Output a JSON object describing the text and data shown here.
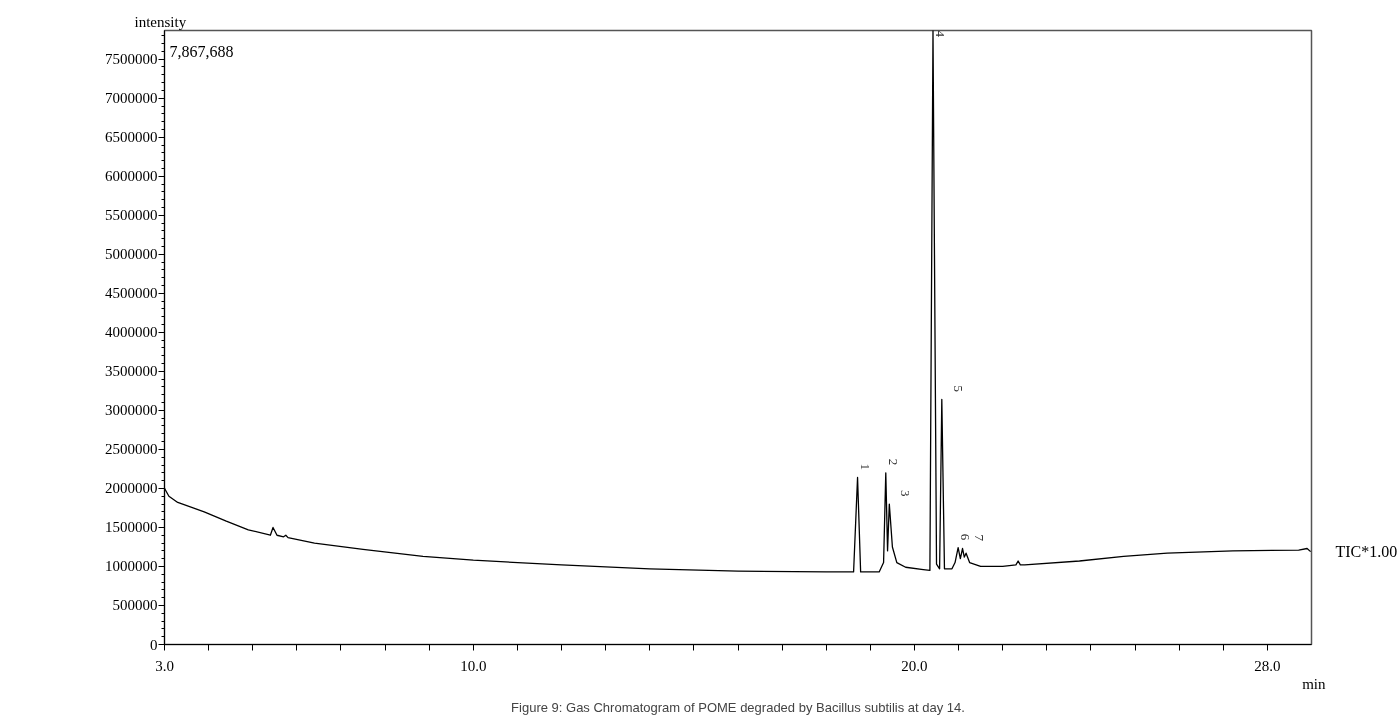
{
  "chart_data": {
    "type": "line",
    "xlabel": "min",
    "ylabel": "intensity",
    "x": [
      3.0,
      3.1,
      3.3,
      3.9,
      4.4,
      4.9,
      5.4,
      5.46,
      5.55,
      5.7,
      5.75,
      5.8,
      6.4,
      7.5,
      8.86,
      10,
      12,
      14,
      16,
      18,
      18.62,
      18.71,
      18.78,
      19.2,
      19.3,
      19.35,
      19.39,
      19.43,
      19.5,
      19.6,
      19.8,
      20.2,
      20.35,
      20.42,
      20.5,
      20.57,
      20.62,
      20.68,
      20.85,
      20.92,
      20.99,
      21.04,
      21.09,
      21.13,
      21.17,
      21.25,
      21.5,
      22.0,
      22.3,
      22.35,
      22.4,
      22.5,
      23.74,
      24.74,
      25.73,
      27.22,
      28.71,
      28.9,
      28.98
    ],
    "series": [
      {
        "color": "#000000",
        "values": [
          2000000,
          1900000,
          1820000,
          1700000,
          1580000,
          1470000,
          1400000,
          1500000,
          1400000,
          1380000,
          1400000,
          1370000,
          1300000,
          1220000,
          1130000,
          1080000,
          1020000,
          970000,
          940000,
          930000,
          930000,
          2140000,
          930000,
          930000,
          1050000,
          2200000,
          1200000,
          1800000,
          1250000,
          1050000,
          990000,
          960000,
          950000,
          7867688,
          1030000,
          970000,
          3140000,
          970000,
          970000,
          1050000,
          1240000,
          1100000,
          1230000,
          1120000,
          1170000,
          1050000,
          1000000,
          1000000,
          1020000,
          1070000,
          1020000,
          1020000,
          1070000,
          1130000,
          1170000,
          1200000,
          1210000,
          1230000,
          1190000
        ]
      }
    ],
    "xlim": [
      3.0,
      29.0
    ],
    "xticks": [
      {
        "value": 3,
        "label": "3.0"
      },
      {
        "value": 4,
        "label": null
      },
      {
        "value": 5,
        "label": null
      },
      {
        "value": 6,
        "label": null
      },
      {
        "value": 7,
        "label": null
      },
      {
        "value": 8,
        "label": null
      },
      {
        "value": 9,
        "label": null
      },
      {
        "value": 10,
        "label": "10.0"
      },
      {
        "value": 11,
        "label": null
      },
      {
        "value": 12,
        "label": null
      },
      {
        "value": 13,
        "label": null
      },
      {
        "value": 14,
        "label": null
      },
      {
        "value": 15,
        "label": null
      },
      {
        "value": 16,
        "label": null
      },
      {
        "value": 17,
        "label": null
      },
      {
        "value": 18,
        "label": null
      },
      {
        "value": 19,
        "label": null
      },
      {
        "value": 20,
        "label": "20.0"
      },
      {
        "value": 21,
        "label": null
      },
      {
        "value": 22,
        "label": null
      },
      {
        "value": 23,
        "label": null
      },
      {
        "value": 24,
        "label": null
      },
      {
        "value": 25,
        "label": null
      },
      {
        "value": 26,
        "label": null
      },
      {
        "value": 27,
        "label": null
      },
      {
        "value": 28,
        "label": "28.0"
      }
    ],
    "ylim": [
      0,
      7867688
    ],
    "yticks": [
      0,
      500000,
      1000000,
      1500000,
      2000000,
      2500000,
      3000000,
      3500000,
      4000000,
      4500000,
      5000000,
      5500000,
      6000000,
      6500000,
      7000000,
      7500000
    ],
    "annotations": [
      "7,867,688",
      "TIC*1.00",
      "Figure 9: Gas Chromatogram of POME degraded by Bacillus subtilis at day 14.",
      {
        "text": "1",
        "x": 18.71,
        "y": 2140000
      },
      {
        "text": "2",
        "x": 19.35,
        "y": 2200000
      },
      {
        "text": "3",
        "x": 19.43,
        "y": 1800000
      },
      {
        "text": "4",
        "x": 20.42,
        "y": 7867688
      },
      {
        "text": "5",
        "x": 20.62,
        "y": 3140000
      },
      {
        "text": "6",
        "x": 20.99,
        "y": 1240000
      },
      {
        "text": "7",
        "x": 21.09,
        "y": 1230000
      }
    ]
  }
}
